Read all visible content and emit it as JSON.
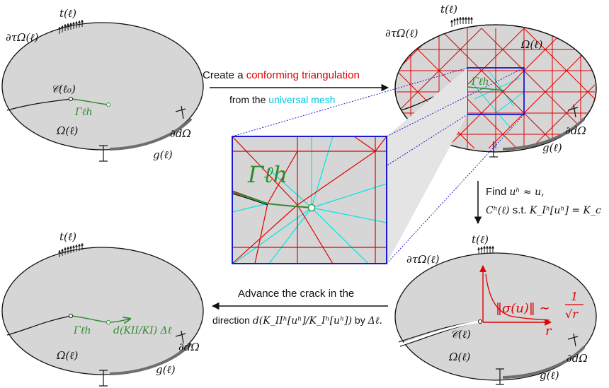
{
  "colors": {
    "body_fill": "#d6d6d6",
    "outline": "#111111",
    "boundary_d": "#6e6e6e",
    "crack_path": "#2e8b2e",
    "mesh": "#e00000",
    "universal_mesh": "#00e5e5",
    "zoom_box": "#1a1acc",
    "stress_curve": "#e00000",
    "highlight_red": "#e00000",
    "highlight_cyan": "#00c8e0"
  },
  "panel_tl": {
    "traction": "t(ℓ)",
    "boundary_tau": "∂τΩ(ℓ)",
    "crack_start": "𝒞(ℓ₀)",
    "gamma": "Γℓh",
    "omega": "Ω(ℓ)",
    "boundary_d": "∂dΩ",
    "g": "g(ℓ)"
  },
  "panel_tr": {
    "traction": "t(ℓ)",
    "boundary_tau": "∂τΩ(ℓ)",
    "omega": "Ω(ℓ)",
    "gamma": "Γℓh",
    "boundary_d": "∂dΩ",
    "g": "g(ℓ)"
  },
  "zoom": {
    "gamma": "Γℓh"
  },
  "panel_bl": {
    "traction": "t(ℓ)",
    "gamma": "Γℓh",
    "increment": "d(KII/KI) Δℓ",
    "omega": "Ω(ℓ)",
    "boundary_d": "∂dΩ",
    "g": "g(ℓ)"
  },
  "panel_br": {
    "traction": "t(ℓ)",
    "boundary_tau": "∂τΩ(ℓ)",
    "crack": "𝒞(ℓ)",
    "omega": "Ω(ℓ)",
    "boundary_d": "∂dΩ",
    "g": "g(ℓ)",
    "stress_lhs": "‖σ(u)‖ ∼",
    "stress_num": "1",
    "stress_den": "√r",
    "r_axis": "r"
  },
  "arrow_top": {
    "line1_prefix": "Create a ",
    "line1_highlight": "conforming triangulation",
    "line2_prefix": "from the ",
    "line2_highlight": "universal mesh"
  },
  "arrow_right": {
    "line1_prefix": "Find ",
    "line1_math": "uʰ ≈ u,",
    "line2_math_a": "Cʰ(ℓ)",
    "line2_text": " s.t. ",
    "line2_math_b": "K_Iʰ[uʰ] = K_c"
  },
  "arrow_bottom": {
    "line1": "Advance the crack in the",
    "line2_prefix": "direction ",
    "line2_math": "d(K_IIʰ[uʰ]/K_Iʰ[uʰ])",
    "line2_mid": " by ",
    "line2_end": "Δℓ."
  }
}
